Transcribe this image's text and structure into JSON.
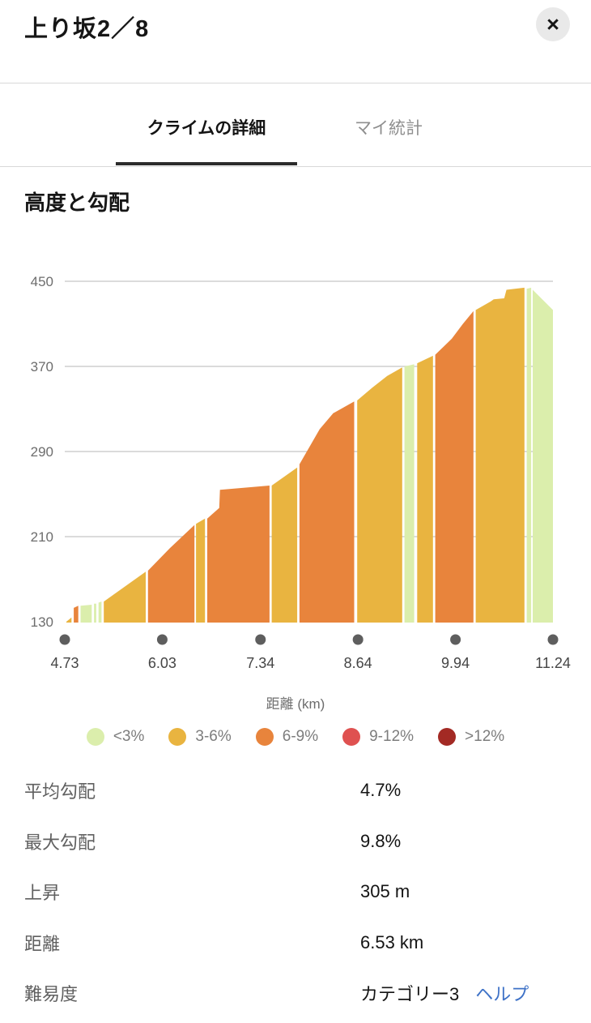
{
  "header": {
    "title": "上り坂2／8",
    "close_glyph": "×"
  },
  "tabs": [
    {
      "label": "クライムの詳細",
      "active": true
    },
    {
      "label": "マイ統計",
      "active": false
    }
  ],
  "section": {
    "title": "高度と勾配"
  },
  "chart_data": {
    "type": "area",
    "title": "高度と勾配",
    "xlabel": "距離 (km)",
    "ylabel": "",
    "xlim": [
      4.73,
      11.24
    ],
    "ylim": [
      130,
      450
    ],
    "grid": true,
    "legend_position": "bottom",
    "x_ticks": [
      4.73,
      6.03,
      7.34,
      8.64,
      9.94,
      11.24
    ],
    "x_tick_labels": [
      "4.73",
      "6.03",
      "7.34",
      "8.64",
      "9.94",
      "11.24"
    ],
    "y_ticks": [
      450,
      370,
      290,
      210,
      130
    ],
    "legend": [
      {
        "label": "<3%",
        "color": "#dbeeac"
      },
      {
        "label": "3-6%",
        "color": "#e9b440"
      },
      {
        "label": "6-9%",
        "color": "#e8843c"
      },
      {
        "label": "9-12%",
        "color": "#df5150"
      },
      {
        "label": ">12%",
        "color": "#a32a24"
      }
    ],
    "segments": [
      {
        "bucket": "3-6%",
        "points": [
          [
            4.75,
            130
          ],
          [
            4.82,
            134
          ]
        ]
      },
      {
        "bucket": "6-9%",
        "points": [
          [
            4.85,
            143
          ],
          [
            4.91,
            145
          ]
        ]
      },
      {
        "bucket": "<3%",
        "points": [
          [
            4.94,
            145
          ],
          [
            5.09,
            146
          ]
        ]
      },
      {
        "bucket": "<3%",
        "points": [
          [
            5.12,
            147
          ],
          [
            5.15,
            147
          ]
        ]
      },
      {
        "bucket": "<3%",
        "points": [
          [
            5.18,
            148
          ],
          [
            5.22,
            149
          ]
        ]
      },
      {
        "bucket": "3-6%",
        "points": [
          [
            5.25,
            149
          ],
          [
            5.81,
            177
          ]
        ]
      },
      {
        "bucket": "6-9%",
        "points": [
          [
            5.84,
            178
          ],
          [
            6.13,
            199
          ],
          [
            6.46,
            221
          ]
        ]
      },
      {
        "bucket": "3-6%",
        "points": [
          [
            6.48,
            222
          ],
          [
            6.6,
            227
          ]
        ]
      },
      {
        "bucket": "6-9%",
        "points": [
          [
            6.63,
            227
          ],
          [
            6.79,
            237
          ],
          [
            6.8,
            254
          ],
          [
            7.46,
            258
          ]
        ]
      },
      {
        "bucket": "3-6%",
        "points": [
          [
            7.49,
            258
          ],
          [
            7.83,
            275
          ]
        ]
      },
      {
        "bucket": "6-9%",
        "points": [
          [
            7.86,
            278
          ],
          [
            8.13,
            311
          ],
          [
            8.31,
            326
          ],
          [
            8.59,
            337
          ]
        ]
      },
      {
        "bucket": "3-6%",
        "points": [
          [
            8.63,
            338
          ],
          [
            8.83,
            350
          ],
          [
            9.03,
            361
          ],
          [
            9.23,
            369
          ]
        ]
      },
      {
        "bucket": "<3%",
        "points": [
          [
            9.26,
            370
          ],
          [
            9.39,
            372
          ]
        ]
      },
      {
        "bucket": "3-6%",
        "points": [
          [
            9.43,
            373
          ],
          [
            9.64,
            380
          ]
        ]
      },
      {
        "bucket": "6-9%",
        "points": [
          [
            9.67,
            381
          ],
          [
            9.89,
            396
          ],
          [
            10.04,
            410
          ],
          [
            10.18,
            422
          ]
        ]
      },
      {
        "bucket": "3-6%",
        "points": [
          [
            10.21,
            423
          ],
          [
            10.41,
            431
          ],
          [
            10.45,
            433
          ],
          [
            10.59,
            434
          ],
          [
            10.62,
            442
          ],
          [
            10.86,
            444
          ]
        ]
      },
      {
        "bucket": "<3%",
        "points": [
          [
            10.89,
            443
          ],
          [
            10.95,
            444
          ]
        ]
      },
      {
        "bucket": "<3%",
        "points": [
          [
            10.97,
            442
          ],
          [
            11.24,
            423
          ]
        ]
      }
    ]
  },
  "stats": {
    "rows": [
      {
        "label": "平均勾配",
        "value": "4.7%"
      },
      {
        "label": "最大勾配",
        "value": "9.8%"
      },
      {
        "label": "上昇",
        "value": "305 m"
      },
      {
        "label": "距離",
        "value": "6.53 km"
      },
      {
        "label": "難易度",
        "value": "カテゴリー3",
        "link": "ヘルプ"
      }
    ]
  }
}
